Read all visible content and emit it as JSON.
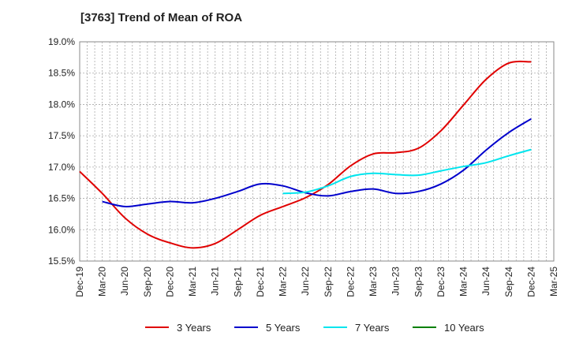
{
  "chart_data": {
    "type": "line",
    "title": "[3763]  Trend of Mean of ROA",
    "xlabel": "",
    "ylabel": "",
    "categories": [
      "Dec-19",
      "Mar-20",
      "Jun-20",
      "Sep-20",
      "Dec-20",
      "Mar-21",
      "Jun-21",
      "Sep-21",
      "Dec-21",
      "Mar-22",
      "Jun-22",
      "Sep-22",
      "Dec-22",
      "Mar-23",
      "Jun-23",
      "Sep-23",
      "Dec-23",
      "Mar-24",
      "Jun-24",
      "Sep-24",
      "Dec-24",
      "Mar-25"
    ],
    "ylim": [
      15.5,
      19.0
    ],
    "yticks": [
      "15.5%",
      "16.0%",
      "16.5%",
      "17.0%",
      "17.5%",
      "18.0%",
      "18.5%",
      "19.0%"
    ],
    "grid": true,
    "legend_position": "bottom",
    "series": [
      {
        "name": "3 Years",
        "color": "#e00000",
        "values": [
          16.93,
          16.58,
          16.19,
          15.93,
          15.79,
          15.71,
          15.78,
          16.0,
          16.23,
          16.37,
          16.51,
          16.72,
          17.02,
          17.21,
          17.23,
          17.3,
          17.58,
          17.99,
          18.4,
          18.66,
          18.68,
          null
        ]
      },
      {
        "name": "5 Years",
        "color": "#0000cc",
        "values": [
          null,
          16.45,
          16.37,
          16.41,
          16.45,
          16.43,
          16.5,
          16.61,
          16.73,
          16.7,
          16.59,
          16.54,
          16.61,
          16.65,
          16.58,
          16.61,
          16.73,
          16.95,
          17.27,
          17.55,
          17.77,
          null
        ]
      },
      {
        "name": "7 Years",
        "color": "#00e5ee",
        "values": [
          null,
          null,
          null,
          null,
          null,
          null,
          null,
          null,
          null,
          16.58,
          16.6,
          16.7,
          16.85,
          16.9,
          16.88,
          16.87,
          16.94,
          17.01,
          17.07,
          17.18,
          17.28,
          null
        ]
      },
      {
        "name": "10 Years",
        "color": "#008000",
        "values": [
          null,
          null,
          null,
          null,
          null,
          null,
          null,
          null,
          null,
          null,
          null,
          null,
          null,
          null,
          null,
          null,
          null,
          null,
          null,
          null,
          null,
          null
        ]
      }
    ]
  }
}
